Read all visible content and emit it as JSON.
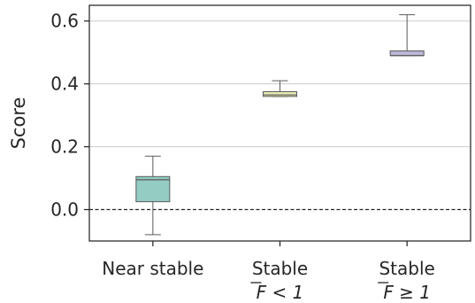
{
  "chart_data": {
    "type": "box",
    "title": "",
    "xlabel": "",
    "ylabel": "Score",
    "ylim": [
      -0.1,
      0.65
    ],
    "yticks": [
      0.0,
      0.2,
      0.4,
      0.6
    ],
    "ytick_labels": [
      "0.0",
      "0.2",
      "0.4",
      "0.6"
    ],
    "grid": "horizontal",
    "reference_line": {
      "y": 0.0,
      "style": "dashed"
    },
    "categories": [
      {
        "line1": "Near stable",
        "line2": ""
      },
      {
        "line1": "Stable",
        "line2": "F < 1"
      },
      {
        "line1": "Stable",
        "line2": "F ≥ 1"
      }
    ],
    "boxes": [
      {
        "whisker_low": -0.08,
        "q1": 0.025,
        "median": 0.095,
        "q3": 0.105,
        "whisker_high": 0.17,
        "color": "#94cbc2"
      },
      {
        "whisker_low": 0.36,
        "q1": 0.36,
        "median": 0.365,
        "q3": 0.375,
        "whisker_high": 0.41,
        "color": "#ececb4"
      },
      {
        "whisker_low": 0.49,
        "q1": 0.49,
        "median": 0.49,
        "q3": 0.505,
        "whisker_high": 0.62,
        "color": "#bdb6d8"
      }
    ]
  }
}
